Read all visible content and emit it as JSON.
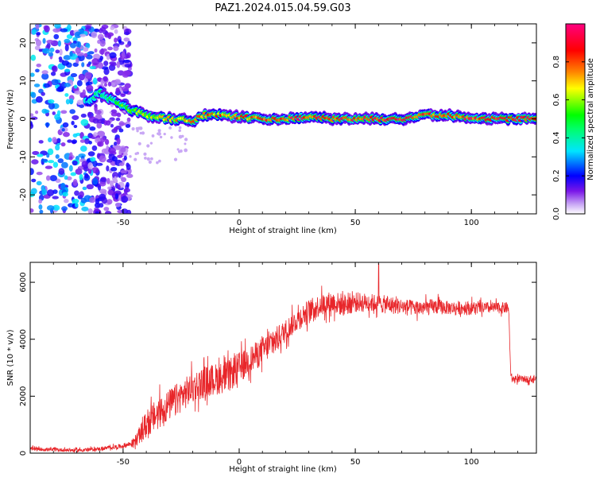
{
  "chart_data": [
    {
      "type": "heatmap",
      "title": "PAZ1.2024.015.04.59.G03",
      "xlabel": "Height of straight line (km)",
      "ylabel": "Frequency (Hz)",
      "xlim": [
        -90,
        128
      ],
      "ylim": [
        -25,
        25
      ],
      "xticks": [
        -50,
        0,
        50,
        100
      ],
      "yticks": [
        20,
        10,
        0,
        -10,
        -20
      ],
      "grid": false,
      "colorbar": {
        "label": "Normalized spectral amplitude",
        "ticks": [
          0.0,
          0.2,
          0.4,
          0.6,
          0.8
        ],
        "range": [
          0,
          1
        ],
        "colormap": [
          "#ffffff",
          "#7a16e8",
          "#0000ff",
          "#00e5ff",
          "#00ff00",
          "#ffff00",
          "#ff8000",
          "#ff0000",
          "#ff007f"
        ]
      },
      "ridge": {
        "x": [
          -65,
          -60,
          -55,
          -50,
          -45,
          -40,
          -30,
          -20,
          -15,
          -10,
          0,
          10,
          20,
          30,
          40,
          50,
          60,
          70,
          80,
          90,
          100,
          110,
          120,
          128
        ],
        "y": [
          4.5,
          7.0,
          5.0,
          3.5,
          2.0,
          1.0,
          0.0,
          -0.5,
          1.0,
          1.0,
          0.5,
          0.0,
          0.0,
          0.5,
          0.0,
          0.0,
          0.0,
          0.0,
          1.0,
          1.0,
          0.0,
          0.0,
          0.0,
          0.0
        ],
        "amp": [
          0.35,
          0.45,
          0.5,
          0.55,
          0.6,
          0.65,
          0.7,
          0.75,
          0.8,
          0.8,
          0.8,
          0.85,
          0.9,
          0.9,
          0.9,
          0.9,
          0.9,
          0.95,
          0.9,
          0.85,
          0.9,
          0.9,
          0.9,
          0.85
        ]
      },
      "noise_region": {
        "x": [
          -90,
          -47
        ],
        "y": [
          -25,
          25
        ],
        "amp": [
          0.05,
          0.35
        ]
      }
    },
    {
      "type": "line",
      "xlabel": "Height of straight line (km)",
      "ylabel": "SNR (10 * v/v)",
      "xlim": [
        -90,
        128
      ],
      "ylim": [
        0,
        6700
      ],
      "xticks": [
        -50,
        0,
        50,
        100
      ],
      "yticks": [
        0,
        2000,
        4000,
        6000
      ],
      "grid": false,
      "series": [
        {
          "color": "#e8262a",
          "x": [
            -90,
            -80,
            -70,
            -60,
            -50,
            -46,
            -44,
            -40,
            -35,
            -30,
            -25,
            -20,
            -15,
            -10,
            -5,
            0,
            5,
            10,
            15,
            20,
            25,
            30,
            35,
            40,
            45,
            50,
            55,
            60,
            65,
            70,
            75,
            80,
            85,
            90,
            95,
            100,
            105,
            110,
            116,
            117,
            118,
            120,
            125,
            128
          ],
          "y": [
            150,
            120,
            100,
            150,
            250,
            350,
            500,
            1000,
            1400,
            1700,
            2000,
            2300,
            2500,
            2600,
            2700,
            3000,
            3300,
            3600,
            3900,
            4300,
            4700,
            5000,
            5200,
            5300,
            5200,
            5300,
            5300,
            5250,
            5200,
            5150,
            5100,
            5100,
            5150,
            5100,
            5100,
            5100,
            5100,
            5100,
            5100,
            2700,
            2600,
            2600,
            2600,
            2600
          ],
          "noise": [
            80,
            80,
            80,
            80,
            100,
            150,
            300,
            600,
            700,
            700,
            700,
            700,
            700,
            700,
            700,
            700,
            600,
            600,
            600,
            500,
            500,
            500,
            500,
            500,
            500,
            450,
            400,
            400,
            400,
            350,
            350,
            350,
            350,
            300,
            300,
            300,
            250,
            250,
            250,
            150,
            150,
            150,
            150,
            150
          ],
          "peak": {
            "x": 60,
            "y": 6650
          }
        }
      ]
    }
  ]
}
